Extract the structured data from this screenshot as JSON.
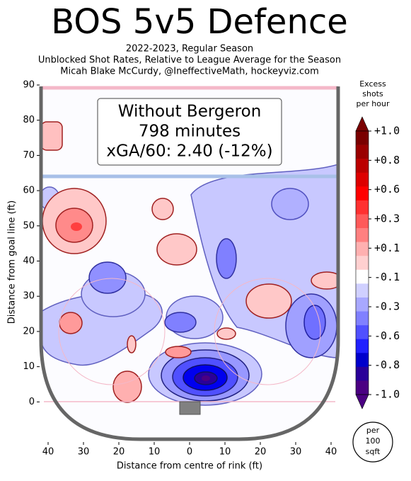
{
  "chart_data": {
    "type": "shotmap",
    "title": "BOS 5v5 Defence",
    "subtitle": [
      "2022-2023, Regular Season",
      "Unblocked Shot Rates, Relative to League Average for the Season",
      "Micah Blake McCurdy, @IneffectiveMath, hockeyviz.com"
    ],
    "annotation": [
      "Without Bergeron",
      "798 minutes",
      "xGA/60: 2.40 (-12%)"
    ],
    "x_label": "Distance from centre of rink (ft)",
    "y_label": "Distance from goal line (ft)",
    "xlim": [
      -42,
      42
    ],
    "ylim": [
      -11,
      90
    ],
    "xticks": [
      {
        "value": -40,
        "label": "40"
      },
      {
        "value": -30,
        "label": "30"
      },
      {
        "value": -20,
        "label": "20"
      },
      {
        "value": -10,
        "label": "10"
      },
      0,
      10,
      20,
      30,
      40
    ],
    "yticks": [
      0,
      10,
      20,
      30,
      40,
      50,
      60,
      70,
      80,
      90
    ],
    "colorbar_title": [
      "Excess",
      "shots",
      "per hour"
    ],
    "colorbar_ticks": [
      {
        "value": 1.0,
        "label": "+1.0"
      },
      {
        "value": 0.8,
        "label": "+0.8"
      },
      {
        "value": 0.6,
        "label": "+0.6"
      },
      {
        "value": 0.3,
        "label": "+0.3"
      },
      {
        "value": 0.1,
        "label": "+0.1"
      },
      -0.1,
      -0.3,
      -0.6,
      -0.8,
      {
        "value": -1.0,
        "label": "-1.0"
      }
    ],
    "colorbar_colors": [
      "#7a0000",
      "#9a0000",
      "#bb0000",
      "#dd0000",
      "#ff0000",
      "#ff3030",
      "#ff5a5a",
      "#ff8080",
      "#ffb0b0",
      "#ffd0d0",
      "#ffffff",
      "#d0d0ff",
      "#a8a8ff",
      "#8080ff",
      "#5050ff",
      "#2020ff",
      "#0000cc",
      "#2a0099",
      "#4b0082"
    ],
    "unit_note": [
      "per",
      "100",
      "sqft"
    ]
  }
}
